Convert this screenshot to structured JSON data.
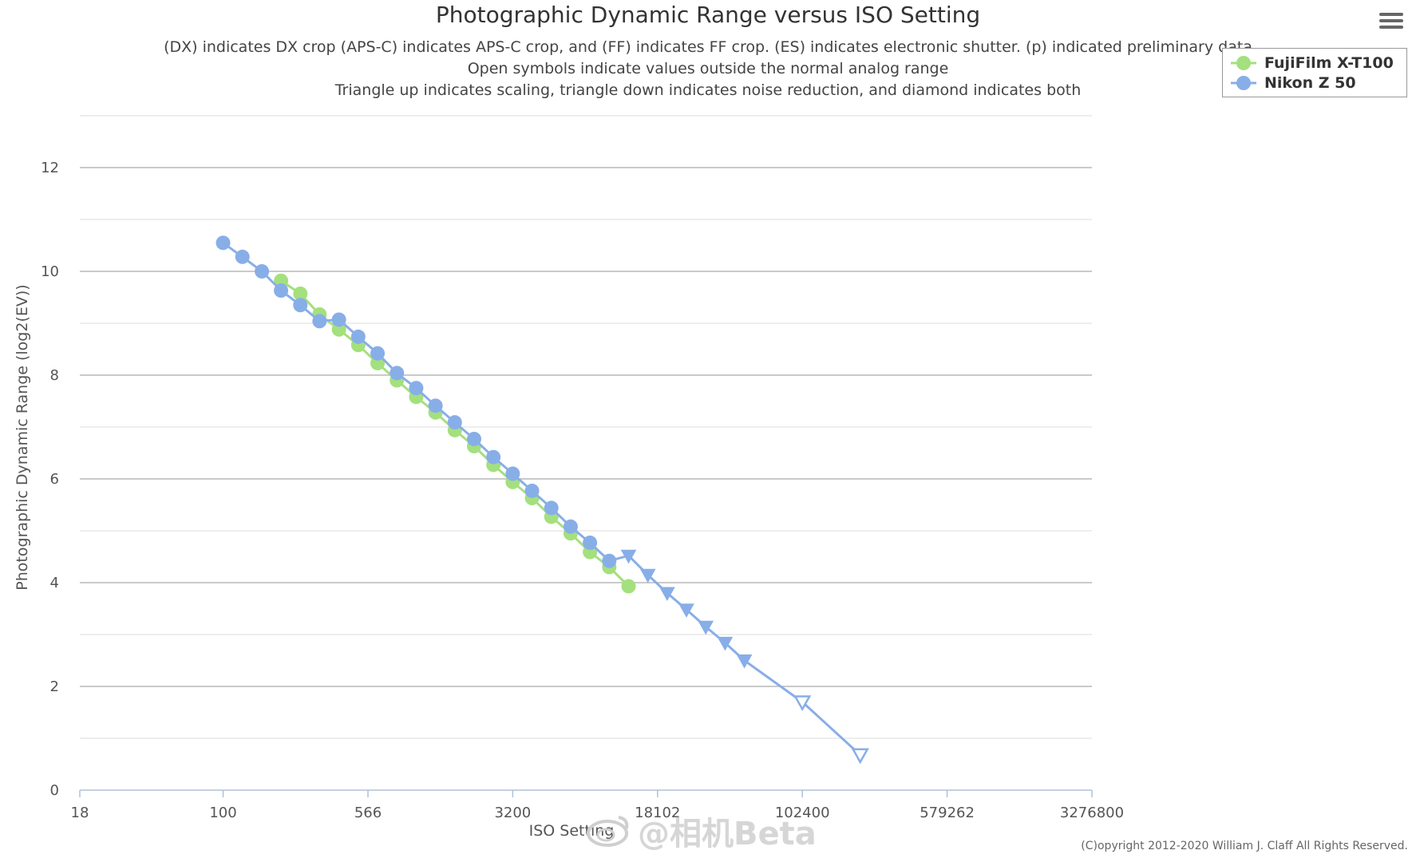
{
  "chart_data": {
    "type": "line",
    "title": "Photographic Dynamic Range versus ISO Setting",
    "subtitles": [
      "(DX) indicates DX crop (APS-C) indicates APS-C crop, and (FF) indicates FF crop. (ES) indicates electronic shutter. (p) indicated preliminary data",
      "Open symbols indicate values outside the normal analog range",
      "Triangle up indicates scaling, triangle down indicates noise reduction, and diamond indicates both"
    ],
    "xlabel": "ISO Setting",
    "ylabel": "Photographic Dynamic Range (log2(EV))",
    "x_scale": "log",
    "x_ticks": [
      18,
      100,
      566,
      3200,
      18102,
      102400,
      579262,
      3276800
    ],
    "x_tick_labels": [
      "18",
      "100",
      "566",
      "3200",
      "18102",
      "102400",
      "579262",
      "3276800"
    ],
    "xlim": [
      18,
      3276800
    ],
    "ylim": [
      0,
      13
    ],
    "y_ticks": [
      0,
      2,
      4,
      6,
      8,
      10,
      12
    ],
    "y_tick_labels": [
      "0",
      "2",
      "4",
      "6",
      "8",
      "10",
      "12"
    ],
    "grid": true,
    "legend_position": "top-right",
    "series": [
      {
        "name": "FujiFilm X-T100",
        "color": "#a4e07e",
        "points": [
          {
            "x": 200,
            "y": 9.82,
            "marker": "circle"
          },
          {
            "x": 252,
            "y": 9.57,
            "marker": "circle"
          },
          {
            "x": 317,
            "y": 9.17,
            "marker": "circle"
          },
          {
            "x": 400,
            "y": 8.88,
            "marker": "circle"
          },
          {
            "x": 504,
            "y": 8.58,
            "marker": "circle"
          },
          {
            "x": 635,
            "y": 8.23,
            "marker": "circle"
          },
          {
            "x": 800,
            "y": 7.9,
            "marker": "circle"
          },
          {
            "x": 1008,
            "y": 7.58,
            "marker": "circle"
          },
          {
            "x": 1270,
            "y": 7.28,
            "marker": "circle"
          },
          {
            "x": 1600,
            "y": 6.94,
            "marker": "circle"
          },
          {
            "x": 2016,
            "y": 6.63,
            "marker": "circle"
          },
          {
            "x": 2540,
            "y": 6.27,
            "marker": "circle"
          },
          {
            "x": 3200,
            "y": 5.94,
            "marker": "circle"
          },
          {
            "x": 4032,
            "y": 5.63,
            "marker": "circle"
          },
          {
            "x": 5080,
            "y": 5.27,
            "marker": "circle"
          },
          {
            "x": 6400,
            "y": 4.95,
            "marker": "circle"
          },
          {
            "x": 8063,
            "y": 4.59,
            "marker": "circle"
          },
          {
            "x": 10159,
            "y": 4.3,
            "marker": "circle"
          },
          {
            "x": 12800,
            "y": 3.93,
            "marker": "circle"
          }
        ]
      },
      {
        "name": "Nikon Z 50",
        "color": "#88aee8",
        "points": [
          {
            "x": 100,
            "y": 10.55,
            "marker": "circle"
          },
          {
            "x": 126,
            "y": 10.28,
            "marker": "circle"
          },
          {
            "x": 159,
            "y": 10.0,
            "marker": "circle"
          },
          {
            "x": 200,
            "y": 9.63,
            "marker": "circle"
          },
          {
            "x": 252,
            "y": 9.35,
            "marker": "circle"
          },
          {
            "x": 317,
            "y": 9.04,
            "marker": "circle"
          },
          {
            "x": 400,
            "y": 9.07,
            "marker": "circle"
          },
          {
            "x": 504,
            "y": 8.74,
            "marker": "circle"
          },
          {
            "x": 635,
            "y": 8.42,
            "marker": "circle"
          },
          {
            "x": 800,
            "y": 8.04,
            "marker": "circle"
          },
          {
            "x": 1008,
            "y": 7.75,
            "marker": "circle"
          },
          {
            "x": 1270,
            "y": 7.41,
            "marker": "circle"
          },
          {
            "x": 1600,
            "y": 7.09,
            "marker": "circle"
          },
          {
            "x": 2016,
            "y": 6.77,
            "marker": "circle"
          },
          {
            "x": 2540,
            "y": 6.42,
            "marker": "circle"
          },
          {
            "x": 3200,
            "y": 6.1,
            "marker": "circle"
          },
          {
            "x": 4032,
            "y": 5.77,
            "marker": "circle"
          },
          {
            "x": 5080,
            "y": 5.44,
            "marker": "circle"
          },
          {
            "x": 6400,
            "y": 5.08,
            "marker": "circle"
          },
          {
            "x": 8063,
            "y": 4.77,
            "marker": "circle"
          },
          {
            "x": 10159,
            "y": 4.42,
            "marker": "circle"
          },
          {
            "x": 12800,
            "y": 4.52,
            "marker": "triangle-down"
          },
          {
            "x": 16127,
            "y": 4.15,
            "marker": "triangle-down"
          },
          {
            "x": 20319,
            "y": 3.8,
            "marker": "triangle-down"
          },
          {
            "x": 25600,
            "y": 3.48,
            "marker": "triangle-down"
          },
          {
            "x": 32254,
            "y": 3.15,
            "marker": "triangle-down"
          },
          {
            "x": 40637,
            "y": 2.84,
            "marker": "triangle-down"
          },
          {
            "x": 51200,
            "y": 2.5,
            "marker": "triangle-down"
          },
          {
            "x": 102400,
            "y": 1.7,
            "marker": "triangle-down-open"
          },
          {
            "x": 204800,
            "y": 0.68,
            "marker": "triangle-down-open"
          }
        ]
      }
    ]
  },
  "menu_icon": "hamburger-menu-icon",
  "copyright": "(C)opyright 2012-2020 William J. Claff All Rights Reserved.",
  "watermark": "@相机Beta",
  "watermark_icon": "weibo-logo-icon"
}
